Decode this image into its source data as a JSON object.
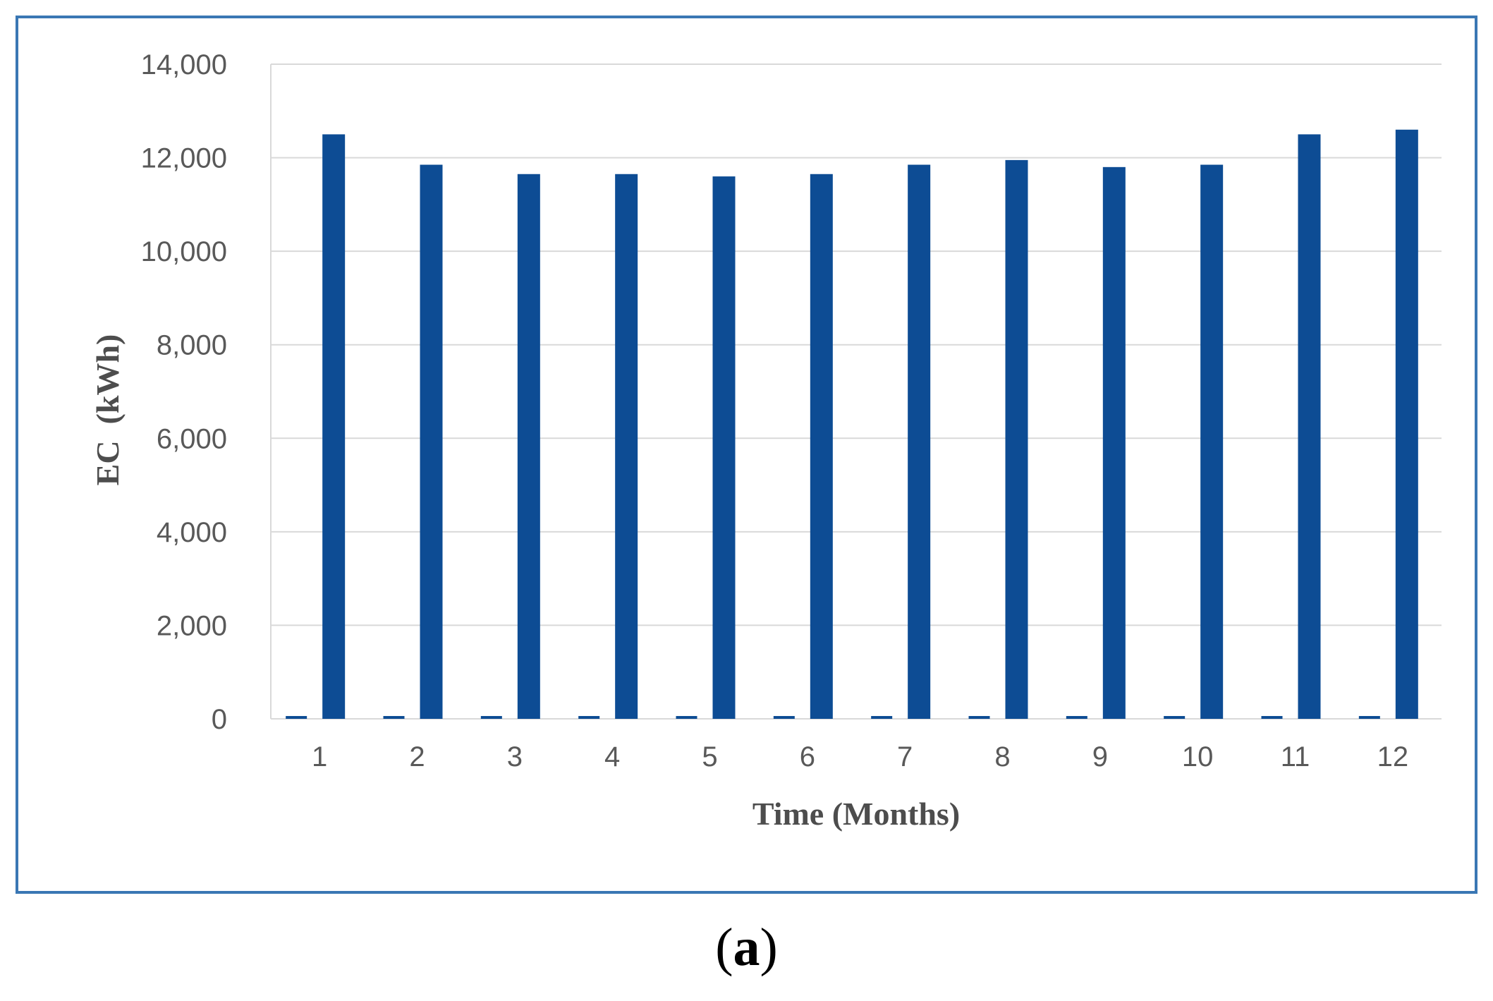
{
  "chart_data": {
    "type": "bar",
    "categories": [
      "1",
      "2",
      "3",
      "4",
      "5",
      "6",
      "7",
      "8",
      "9",
      "10",
      "11",
      "12"
    ],
    "series": [
      {
        "values": [
          60,
          60,
          60,
          60,
          60,
          60,
          60,
          60,
          60,
          60,
          60,
          60
        ]
      },
      {
        "values": [
          12500,
          11850,
          11650,
          11650,
          11600,
          11650,
          11850,
          11950,
          11800,
          11850,
          12500,
          12600
        ]
      }
    ],
    "xlabel": "Time (Months)",
    "ylabel": "EC  (kWh)",
    "ylim": [
      0,
      14000
    ],
    "yticks": [
      "0",
      "2,000",
      "4,000",
      "6,000",
      "8,000",
      "10,000",
      "12,000",
      "14,000"
    ],
    "grid": true,
    "color": "#0d4c94"
  },
  "caption": {
    "open": "(",
    "letter": "a",
    "close": ")"
  }
}
